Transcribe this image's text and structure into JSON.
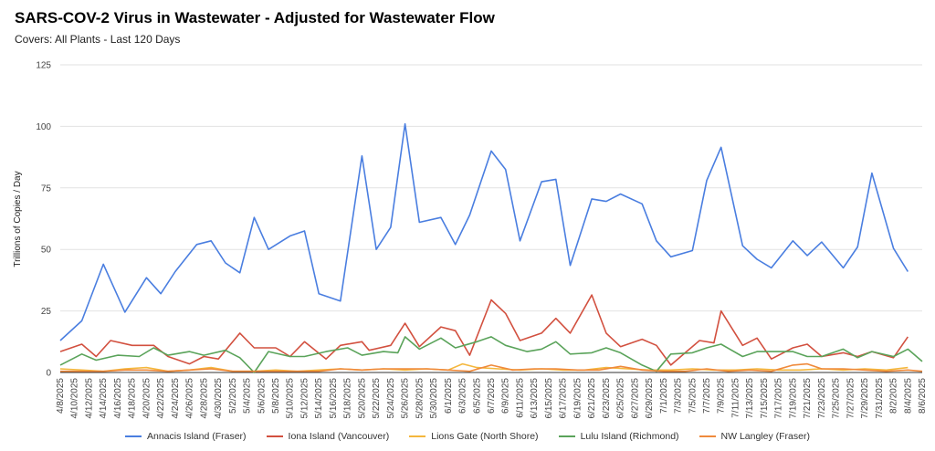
{
  "header": {
    "title": "SARS-COV-2 Virus in Wastewater - Adjusted for Wastewater Flow",
    "subtitle": "Covers: All Plants - Last 120 Days"
  },
  "chart_data": {
    "type": "line",
    "title": "SARS-COV-2 Virus in Wastewater - Adjusted for Wastewater Flow",
    "subtitle": "Covers: All Plants - Last 120 Days",
    "xlabel": "",
    "ylabel": "Trillions of Copies / Day",
    "ylim": [
      0,
      125
    ],
    "yticks": [
      0,
      25,
      50,
      75,
      100,
      125
    ],
    "grid": "horizontal",
    "legend_position": "bottom",
    "x": [
      "4/8/2025",
      "4/10/2025",
      "4/12/2025",
      "4/14/2025",
      "4/16/2025",
      "4/18/2025",
      "4/20/2025",
      "4/22/2025",
      "4/24/2025",
      "4/26/2025",
      "4/28/2025",
      "4/30/2025",
      "5/2/2025",
      "5/4/2025",
      "5/6/2025",
      "5/8/2025",
      "5/10/2025",
      "5/12/2025",
      "5/14/2025",
      "5/16/2025",
      "5/18/2025",
      "5/20/2025",
      "5/22/2025",
      "5/24/2025",
      "5/26/2025",
      "5/28/2025",
      "5/30/2025",
      "6/1/2025",
      "6/3/2025",
      "6/5/2025",
      "6/7/2025",
      "6/9/2025",
      "6/11/2025",
      "6/13/2025",
      "6/15/2025",
      "6/17/2025",
      "6/19/2025",
      "6/21/2025",
      "6/23/2025",
      "6/25/2025",
      "6/27/2025",
      "6/29/2025",
      "7/1/2025",
      "7/3/2025",
      "7/5/2025",
      "7/7/2025",
      "7/9/2025",
      "7/11/2025",
      "7/13/2025",
      "7/15/2025",
      "7/17/2025",
      "7/19/2025",
      "7/21/2025",
      "7/23/2025",
      "7/25/2025",
      "7/27/2025",
      "7/29/2025",
      "7/31/2025",
      "8/2/2025",
      "8/4/2025",
      "8/6/2025"
    ],
    "series": [
      {
        "name": "Annacis Island (Fraser)",
        "color": "#4a7ee0",
        "points": [
          [
            "4/8/2025",
            13
          ],
          [
            "4/11/2025",
            21
          ],
          [
            "4/14/2025",
            44
          ],
          [
            "4/17/2025",
            24.5
          ],
          [
            "4/20/2025",
            38.5
          ],
          [
            "4/22/2025",
            32
          ],
          [
            "4/24/2025",
            41
          ],
          [
            "4/27/2025",
            52
          ],
          [
            "4/29/2025",
            53.5
          ],
          [
            "5/1/2025",
            44.5
          ],
          [
            "5/3/2025",
            40.5
          ],
          [
            "5/5/2025",
            63
          ],
          [
            "5/7/2025",
            50
          ],
          [
            "5/10/2025",
            55.5
          ],
          [
            "5/12/2025",
            57.5
          ],
          [
            "5/14/2025",
            32
          ],
          [
            "5/17/2025",
            29
          ],
          [
            "5/20/2025",
            88
          ],
          [
            "5/22/2025",
            50
          ],
          [
            "5/24/2025",
            59
          ],
          [
            "5/26/2025",
            101
          ],
          [
            "5/28/2025",
            61
          ],
          [
            "5/31/2025",
            63
          ],
          [
            "6/2/2025",
            52
          ],
          [
            "6/4/2025",
            64
          ],
          [
            "6/7/2025",
            90
          ],
          [
            "6/9/2025",
            82.5
          ],
          [
            "6/11/2025",
            53.5
          ],
          [
            "6/14/2025",
            77.5
          ],
          [
            "6/16/2025",
            78.5
          ],
          [
            "6/18/2025",
            43.5
          ],
          [
            "6/21/2025",
            70.5
          ],
          [
            "6/23/2025",
            69.5
          ],
          [
            "6/25/2025",
            72.5
          ],
          [
            "6/28/2025",
            68.5
          ],
          [
            "6/30/2025",
            53.5
          ],
          [
            "7/2/2025",
            47
          ],
          [
            "7/5/2025",
            49.5
          ],
          [
            "7/7/2025",
            78
          ],
          [
            "7/9/2025",
            91.5
          ],
          [
            "7/12/2025",
            51.5
          ],
          [
            "7/14/2025",
            46
          ],
          [
            "7/16/2025",
            42.5
          ],
          [
            "7/19/2025",
            53.5
          ],
          [
            "7/21/2025",
            47.5
          ],
          [
            "7/23/2025",
            53
          ],
          [
            "7/26/2025",
            42.5
          ],
          [
            "7/28/2025",
            51
          ],
          [
            "7/30/2025",
            81
          ],
          [
            "8/2/2025",
            50.5
          ],
          [
            "8/4/2025",
            41
          ]
        ]
      },
      {
        "name": "Iona Island (Vancouver)",
        "color": "#d2503f",
        "points": [
          [
            "4/8/2025",
            8.5
          ],
          [
            "4/11/2025",
            11.5
          ],
          [
            "4/13/2025",
            6.5
          ],
          [
            "4/15/2025",
            13
          ],
          [
            "4/18/2025",
            11
          ],
          [
            "4/21/2025",
            11
          ],
          [
            "4/23/2025",
            6.5
          ],
          [
            "4/26/2025",
            3.5
          ],
          [
            "4/28/2025",
            6.5
          ],
          [
            "4/30/2025",
            5.5
          ],
          [
            "5/3/2025",
            16
          ],
          [
            "5/5/2025",
            10
          ],
          [
            "5/8/2025",
            10
          ],
          [
            "5/10/2025",
            6.5
          ],
          [
            "5/12/2025",
            12.5
          ],
          [
            "5/15/2025",
            5.5
          ],
          [
            "5/17/2025",
            11
          ],
          [
            "5/20/2025",
            12.5
          ],
          [
            "5/21/2025",
            9
          ],
          [
            "5/24/2025",
            11
          ],
          [
            "5/26/2025",
            20
          ],
          [
            "5/28/2025",
            10.5
          ],
          [
            "5/31/2025",
            18.5
          ],
          [
            "6/2/2025",
            17
          ],
          [
            "6/4/2025",
            7
          ],
          [
            "6/7/2025",
            29.5
          ],
          [
            "6/9/2025",
            24
          ],
          [
            "6/11/2025",
            13
          ],
          [
            "6/14/2025",
            16
          ],
          [
            "6/16/2025",
            22
          ],
          [
            "6/18/2025",
            16
          ],
          [
            "6/21/2025",
            31.5
          ],
          [
            "6/23/2025",
            16
          ],
          [
            "6/25/2025",
            10.5
          ],
          [
            "6/28/2025",
            13.5
          ],
          [
            "6/30/2025",
            11
          ],
          [
            "7/2/2025",
            3
          ],
          [
            "7/4/2025",
            8
          ],
          [
            "7/6/2025",
            13
          ],
          [
            "7/8/2025",
            12
          ],
          [
            "7/9/2025",
            25
          ],
          [
            "7/12/2025",
            11
          ],
          [
            "7/14/2025",
            14
          ],
          [
            "7/16/2025",
            5.5
          ],
          [
            "7/19/2025",
            10
          ],
          [
            "7/21/2025",
            11.5
          ],
          [
            "7/23/2025",
            6.5
          ],
          [
            "7/26/2025",
            8
          ],
          [
            "7/28/2025",
            6.5
          ],
          [
            "7/30/2025",
            8.5
          ],
          [
            "8/2/2025",
            6
          ],
          [
            "8/4/2025",
            14.5
          ]
        ]
      },
      {
        "name": "Lions Gate (North Shore)",
        "color": "#f4b73d",
        "points": [
          [
            "4/8/2025",
            1.5
          ],
          [
            "4/11/2025",
            1
          ],
          [
            "4/14/2025",
            0.5
          ],
          [
            "4/17/2025",
            1.5
          ],
          [
            "4/20/2025",
            2
          ],
          [
            "4/23/2025",
            0.5
          ],
          [
            "4/26/2025",
            1
          ],
          [
            "4/29/2025",
            2
          ],
          [
            "5/2/2025",
            0.5
          ],
          [
            "5/5/2025",
            0.5
          ],
          [
            "5/8/2025",
            1
          ],
          [
            "5/11/2025",
            0.5
          ],
          [
            "5/14/2025",
            1
          ],
          [
            "5/17/2025",
            1.5
          ],
          [
            "5/20/2025",
            1
          ],
          [
            "5/23/2025",
            1.5
          ],
          [
            "5/26/2025",
            1
          ],
          [
            "5/29/2025",
            1.5
          ],
          [
            "6/1/2025",
            1
          ],
          [
            "6/3/2025",
            3.5
          ],
          [
            "6/5/2025",
            2
          ],
          [
            "6/8/2025",
            1.5
          ],
          [
            "6/11/2025",
            1
          ],
          [
            "6/14/2025",
            1.5
          ],
          [
            "6/17/2025",
            1
          ],
          [
            "6/20/2025",
            1
          ],
          [
            "6/23/2025",
            2
          ],
          [
            "6/26/2025",
            1.5
          ],
          [
            "6/29/2025",
            1
          ],
          [
            "7/2/2025",
            1
          ],
          [
            "7/5/2025",
            1.5
          ],
          [
            "7/8/2025",
            1
          ],
          [
            "7/11/2025",
            1
          ],
          [
            "7/14/2025",
            1.5
          ],
          [
            "7/17/2025",
            1
          ],
          [
            "7/20/2025",
            1
          ],
          [
            "7/23/2025",
            1.5
          ],
          [
            "7/26/2025",
            1
          ],
          [
            "7/29/2025",
            1.5
          ],
          [
            "8/1/2025",
            1
          ],
          [
            "8/4/2025",
            2
          ]
        ]
      },
      {
        "name": "Lulu Island (Richmond)",
        "color": "#5aa35a",
        "points": [
          [
            "4/8/2025",
            3
          ],
          [
            "4/11/2025",
            7.5
          ],
          [
            "4/13/2025",
            5
          ],
          [
            "4/16/2025",
            7
          ],
          [
            "4/19/2025",
            6.5
          ],
          [
            "4/21/2025",
            10
          ],
          [
            "4/23/2025",
            7
          ],
          [
            "4/26/2025",
            8.5
          ],
          [
            "4/28/2025",
            7
          ],
          [
            "5/1/2025",
            9
          ],
          [
            "5/3/2025",
            6
          ],
          [
            "5/5/2025",
            0
          ],
          [
            "5/7/2025",
            8.5
          ],
          [
            "5/10/2025",
            6.5
          ],
          [
            "5/12/2025",
            6.5
          ],
          [
            "5/15/2025",
            8.5
          ],
          [
            "5/18/2025",
            10
          ],
          [
            "5/20/2025",
            7
          ],
          [
            "5/23/2025",
            8.5
          ],
          [
            "5/25/2025",
            8
          ],
          [
            "5/26/2025",
            14.5
          ],
          [
            "5/28/2025",
            9.5
          ],
          [
            "5/31/2025",
            14
          ],
          [
            "6/2/2025",
            10
          ],
          [
            "6/5/2025",
            12.5
          ],
          [
            "6/7/2025",
            14.5
          ],
          [
            "6/9/2025",
            11
          ],
          [
            "6/12/2025",
            8.5
          ],
          [
            "6/14/2025",
            9.5
          ],
          [
            "6/16/2025",
            12.5
          ],
          [
            "6/18/2025",
            7.5
          ],
          [
            "6/21/2025",
            8
          ],
          [
            "6/23/2025",
            10
          ],
          [
            "6/25/2025",
            8
          ],
          [
            "6/28/2025",
            3
          ],
          [
            "6/30/2025",
            0.5
          ],
          [
            "7/2/2025",
            7.5
          ],
          [
            "7/5/2025",
            8
          ],
          [
            "7/7/2025",
            10
          ],
          [
            "7/9/2025",
            11.5
          ],
          [
            "7/12/2025",
            6.5
          ],
          [
            "7/14/2025",
            8.5
          ],
          [
            "7/16/2025",
            8.5
          ],
          [
            "7/19/2025",
            8.5
          ],
          [
            "7/21/2025",
            6.5
          ],
          [
            "7/23/2025",
            6.5
          ],
          [
            "7/26/2025",
            9.5
          ],
          [
            "7/28/2025",
            6
          ],
          [
            "7/30/2025",
            8.5
          ],
          [
            "8/2/2025",
            6.5
          ],
          [
            "8/4/2025",
            9.5
          ],
          [
            "8/6/2025",
            4.5
          ]
        ]
      },
      {
        "name": "NW Langley (Fraser)",
        "color": "#ef8a3c",
        "points": [
          [
            "4/8/2025",
            0.5
          ],
          [
            "4/11/2025",
            0.5
          ],
          [
            "4/14/2025",
            0.5
          ],
          [
            "4/17/2025",
            1
          ],
          [
            "4/20/2025",
            1
          ],
          [
            "4/23/2025",
            0.5
          ],
          [
            "4/26/2025",
            1
          ],
          [
            "4/29/2025",
            1.5
          ],
          [
            "5/2/2025",
            0.5
          ],
          [
            "5/5/2025",
            0.5
          ],
          [
            "5/8/2025",
            0.5
          ],
          [
            "5/11/2025",
            0.5
          ],
          [
            "5/14/2025",
            0.5
          ],
          [
            "5/17/2025",
            1.5
          ],
          [
            "5/20/2025",
            1
          ],
          [
            "5/23/2025",
            1.5
          ],
          [
            "5/26/2025",
            1.5
          ],
          [
            "5/29/2025",
            1.5
          ],
          [
            "6/1/2025",
            1
          ],
          [
            "6/4/2025",
            0.5
          ],
          [
            "6/7/2025",
            3
          ],
          [
            "6/10/2025",
            1
          ],
          [
            "6/13/2025",
            1.5
          ],
          [
            "6/16/2025",
            1.5
          ],
          [
            "6/19/2025",
            1
          ],
          [
            "6/22/2025",
            1
          ],
          [
            "6/25/2025",
            2.5
          ],
          [
            "6/28/2025",
            1
          ],
          [
            "7/1/2025",
            0.5
          ],
          [
            "7/4/2025",
            0.5
          ],
          [
            "7/7/2025",
            1.5
          ],
          [
            "7/10/2025",
            0.5
          ],
          [
            "7/13/2025",
            1
          ],
          [
            "7/16/2025",
            0.5
          ],
          [
            "7/19/2025",
            3
          ],
          [
            "7/21/2025",
            3.5
          ],
          [
            "7/23/2025",
            1.5
          ],
          [
            "7/26/2025",
            1.5
          ],
          [
            "7/29/2025",
            1
          ],
          [
            "8/1/2025",
            0.5
          ],
          [
            "8/4/2025",
            1
          ],
          [
            "8/6/2025",
            0.5
          ]
        ]
      }
    ]
  }
}
